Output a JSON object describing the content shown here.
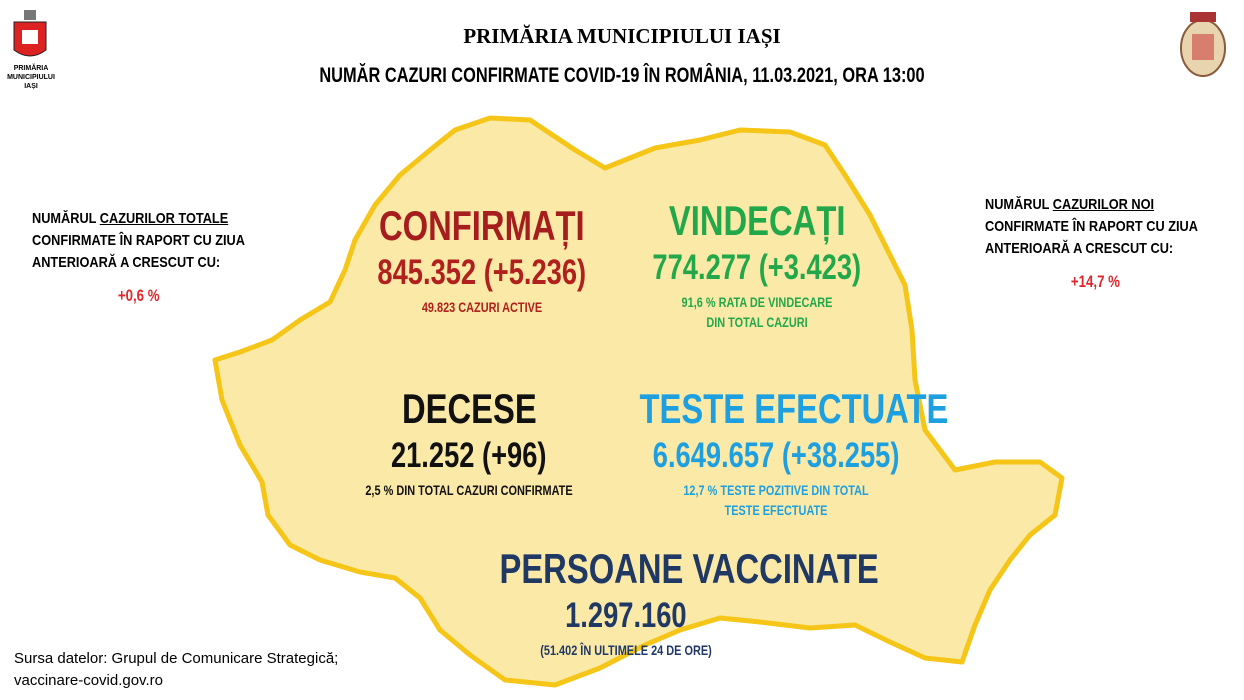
{
  "header": {
    "logo_text": [
      "PRIMĂRIA",
      "MUNICIPIULUI",
      "IAȘI"
    ],
    "title": "PRIMĂRIA MUNICIPIULUI IAȘI",
    "subtitle": "NUMĂR CAZURI CONFIRMATE COVID-19 ÎN ROMÂNIA, 11.03.2021, ORA 13:00"
  },
  "notes": [
    {
      "before": "NUMĂRUL",
      "emphasis": "CAZURILOR TOTALE",
      "after": "CONFIRMATE ÎN RAPORT CU ZIUA ANTERIOARĂ A CRESCUT CU:",
      "value": "+0,6 %"
    },
    {
      "before": "NUMĂRUL",
      "emphasis": "CAZURILOR NOI",
      "after": "CONFIRMATE ÎN RAPORT CU ZIUA ANTERIOARĂ A CRESCUT CU:",
      "value": "+14,7 %"
    }
  ],
  "stats": [
    {
      "title": "CONFIRMAȚI",
      "value": "845.352 (+5.236)",
      "note": "49.823 CAZURI ACTIVE"
    },
    {
      "title": "VINDECAȚI",
      "value": "774.277 (+3.423)",
      "note": "91,6 % RATA DE VINDECARE DIN TOTAL CAZURI"
    },
    {
      "title": "DECESE",
      "value": "21.252 (+96)",
      "note": "2,5 % DIN TOTAL CAZURI CONFIRMATE"
    },
    {
      "title": "TESTE EFECTUATE",
      "value": "6.649.657 (+38.255)",
      "note": "12,7 % TESTE POZITIVE DIN TOTAL TESTE EFECTUATE"
    },
    {
      "title": "PERSOANE VACCINATE",
      "value": "1.297.160",
      "note": "(51.402 ÎN ULTIMELE 24 DE ORE)"
    }
  ],
  "footer": {
    "source": [
      "Sursa datelor: Grupul de Comunicare Strategică;",
      "vaccinare-covid.gov.ro"
    ]
  }
}
